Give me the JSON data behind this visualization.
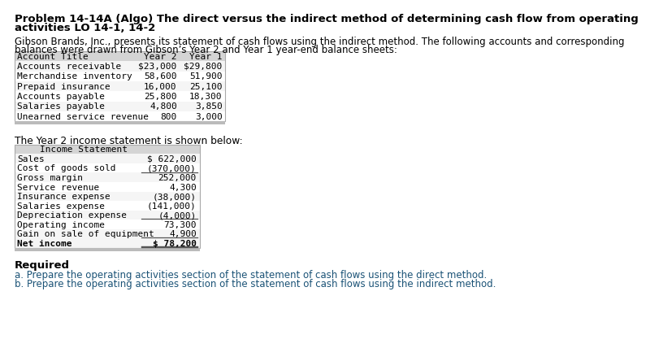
{
  "title_line1": "Problem 14-14A (Algo) The direct versus the indirect method of determining cash flow from operating",
  "title_line2": "activities LO 14-1, 14-2",
  "intro_line1": "Gibson Brands, Inc., presents its statement of cash flows using the indirect method. The following accounts and corresponding",
  "intro_line2": "balances were drawn from Gibson’s Year 2 and Year 1 year-end balance sheets:",
  "balance_sheet_header": [
    "Account Title",
    "Year 2",
    "Year 1"
  ],
  "balance_sheet_rows": [
    [
      "Accounts receivable",
      "$23,000",
      "$29,800"
    ],
    [
      "Merchandise inventory",
      "58,600",
      "51,900"
    ],
    [
      "Prepaid insurance",
      "16,000",
      "25,100"
    ],
    [
      "Accounts payable",
      "25,800",
      "18,300"
    ],
    [
      "Salaries payable",
      "4,800",
      "3,850"
    ],
    [
      "Unearned service revenue",
      "800",
      "3,000"
    ]
  ],
  "income_stmt_label": "The Year 2 income statement is shown below:",
  "income_stmt_header": "Income Statement",
  "income_stmt_rows": [
    [
      "Sales",
      "$ 622,000"
    ],
    [
      "Cost of goods sold",
      "(370,000)"
    ],
    [
      "Gross margin",
      "252,000"
    ],
    [
      "Service revenue",
      "4,300"
    ],
    [
      "Insurance expense",
      "(38,000)"
    ],
    [
      "Salaries expense",
      "(141,000)"
    ],
    [
      "Depreciation expense",
      "(4,000)"
    ],
    [
      "Operating income",
      "73,300"
    ],
    [
      "Gain on sale of equipment",
      "4,900"
    ],
    [
      "Net income",
      "$ 78,200"
    ]
  ],
  "required_label": "Required",
  "req_a": "a. Prepare the operating activities section of the statement of cash flows using the direct method.",
  "req_b": "b. Prepare the operating activities section of the statement of cash flows using the indirect method.",
  "bg_color": "#ffffff",
  "table_header_bg": "#d4d4d4",
  "table_row_bg_odd": "#f5f5f5",
  "table_row_bg_even": "#ffffff",
  "table_border_color": "#aaaaaa",
  "table_bottom_bar_color": "#bbbbbb",
  "title_color": "#000000",
  "body_color": "#000000",
  "link_color": "#1a5276",
  "mono_font": "DejaVu Sans Mono",
  "sans_font": "DejaVu Sans",
  "underline_color": "#555555"
}
